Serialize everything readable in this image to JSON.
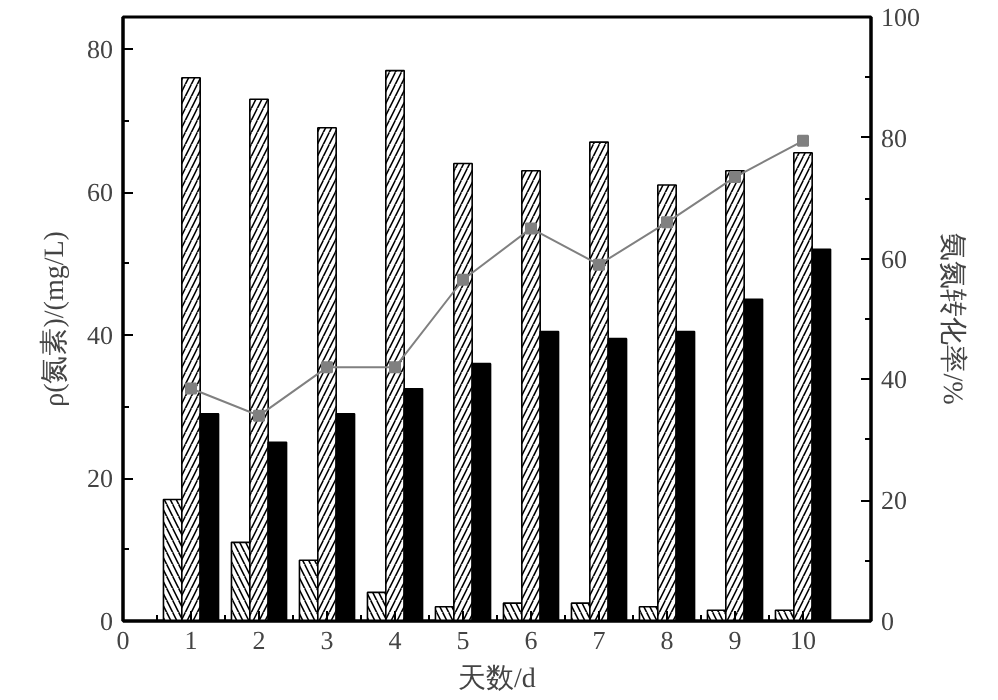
{
  "chart_data": {
    "type": "bar",
    "xlabel": "天数/d",
    "ylabel": "ρ(氮素)/(mg/L)",
    "y2label": "氨氮转化率/%",
    "x": [
      1,
      2,
      3,
      4,
      5,
      6,
      7,
      8,
      9,
      10
    ],
    "series": [
      {
        "color": "#ffffff",
        "values": [
          17,
          11,
          8.5,
          4,
          2,
          2.5,
          2.5,
          2,
          1.5,
          1.5
        ]
      },
      {
        "color": "#ffffff",
        "values": [
          76,
          73,
          69,
          77,
          64,
          63,
          67,
          61,
          63,
          65.5
        ]
      },
      {
        "color": "#000000",
        "values": [
          29,
          25,
          29,
          32.5,
          36,
          40.5,
          39.5,
          40.5,
          45,
          52
        ]
      },
      {
        "type": "line",
        "axis": "y2",
        "color": "#808080",
        "marker": "square",
        "values": [
          38.5,
          34,
          42,
          42,
          56.5,
          65,
          59,
          66,
          73.5,
          79.5
        ]
      }
    ],
    "xlim": [
      0,
      11
    ],
    "xticks": [
      0,
      1,
      2,
      3,
      4,
      5,
      6,
      7,
      8,
      9,
      10
    ],
    "ylim": [
      0,
      84.5
    ],
    "yticks": [
      0,
      20,
      40,
      60,
      80
    ],
    "y2lim": [
      0,
      100
    ],
    "y2ticks": [
      0,
      20,
      40,
      60,
      80,
      100
    ],
    "grid": false
  }
}
